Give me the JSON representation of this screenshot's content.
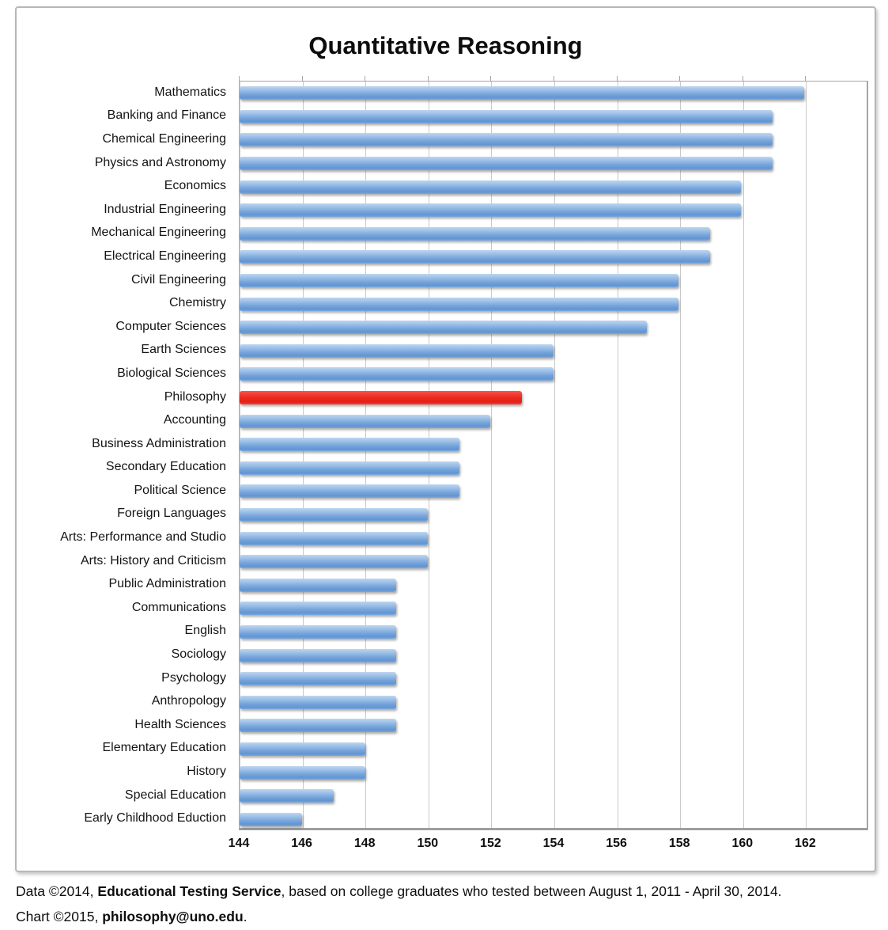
{
  "title": "Quantitative Reasoning",
  "chart_data": {
    "type": "bar",
    "orientation": "horizontal",
    "title": "Quantitative Reasoning",
    "categories": [
      "Mathematics",
      "Banking and Finance",
      "Chemical Engineering",
      "Physics and Astronomy",
      "Economics",
      "Industrial Engineering",
      "Mechanical Engineering",
      "Electrical Engineering",
      "Civil Engineering",
      "Chemistry",
      "Computer Sciences",
      "Earth Sciences",
      "Biological Sciences",
      "Philosophy",
      "Accounting",
      "Business Administration",
      "Secondary Education",
      "Political Science",
      "Foreign Languages",
      "Arts: Performance and Studio",
      "Arts: History and Criticism",
      "Public Administration",
      "Communications",
      "English",
      "Sociology",
      "Psychology",
      "Anthropology",
      "Health Sciences",
      "Elementary Education",
      "History",
      "Special Education",
      "Early Childhood Eduction"
    ],
    "values": [
      162,
      161,
      161,
      161,
      160,
      160,
      159,
      159,
      158,
      158,
      157,
      154,
      154,
      153,
      152,
      151,
      151,
      151,
      150,
      150,
      150,
      149,
      149,
      149,
      149,
      149,
      149,
      149,
      148,
      148,
      147,
      146
    ],
    "highlight_category": "Philosophy",
    "highlight_value": 153,
    "bar_color": "#74a3da",
    "highlight_color": "#ee2d22",
    "xlim": [
      144,
      164
    ],
    "x_ticks": [
      144,
      146,
      148,
      150,
      152,
      154,
      156,
      158,
      160,
      162
    ],
    "xlabel": "",
    "ylabel": "",
    "grid": true,
    "legend_position": "none"
  },
  "footer": {
    "line1_prefix": "Data ©2014, ",
    "line1_bold": "Educational Testing Service",
    "line1_suffix": ", based on college graduates who tested between August 1, 2011 - April 30, 2014.",
    "line2_prefix": "Chart ©2015, ",
    "line2_bold": "philosophy@uno.edu",
    "line2_suffix": "."
  }
}
